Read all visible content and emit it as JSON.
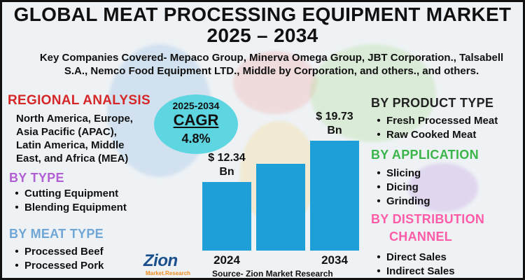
{
  "title": {
    "line1": "GLOBAL MEAT PROCESSING EQUIPMENT MARKET",
    "line2": "2025 – 2034"
  },
  "companies": "Key Companies Covered- Mepaco Group, Minerva Omega Group, JBT Corporation., Talsabell S.A., Nemco Food Equipment LTD., Middle by Corporation, and others., and others.",
  "regional": {
    "heading": "REGIONAL ANALYSIS",
    "text_lines": [
      "North America, Europe,",
      "Asia Pacific (APAC),",
      "Latin America, Middle",
      "East, and Africa (MEA)"
    ]
  },
  "by_type": {
    "heading": "BY TYPE",
    "items": [
      "Cutting Equipment",
      "Blending Equipment"
    ]
  },
  "by_meat_type": {
    "heading": "BY MEAT TYPE",
    "items": [
      "Processed Beef",
      "Processed Pork"
    ]
  },
  "cagr": {
    "years": "2025-2034",
    "label": "CAGR",
    "value": "4.8%"
  },
  "by_product_type": {
    "heading": "BY PRODUCT TYPE",
    "items": [
      "Fresh Processed Meat",
      "Raw Cooked Meat"
    ]
  },
  "by_application": {
    "heading": "BY APPLICATION",
    "items": [
      "Slicing",
      "Dicing",
      "Grinding"
    ]
  },
  "by_distribution": {
    "heading_line1": "BY DISTRIBUTION",
    "heading_line2": "CHANNEL",
    "items": [
      "Direct Sales",
      "Indirect Sales"
    ]
  },
  "chart_data": {
    "type": "bar",
    "categories": [
      "2024",
      "",
      "2034"
    ],
    "values": [
      12.34,
      15.6,
      19.73
    ],
    "data_labels": [
      "$ 12.34",
      "",
      "$ 19.73"
    ],
    "data_label_unit": "Bn",
    "title": "",
    "xlabel": "",
    "ylabel": "",
    "ylim": [
      0,
      22
    ]
  },
  "source": "Source- Zion Market Research",
  "logo": {
    "name": "Zion",
    "sub": "Market.Research"
  },
  "colors": {
    "regional": "#d62728",
    "by_type": "#b15fd3",
    "by_meat_type": "#6fa6d6",
    "by_product_type": "#222222",
    "by_application": "#3ab54a",
    "by_distribution": "#ff5ca8",
    "bar": "#1e9fd8",
    "cagr_circle": "#5ed6e2"
  }
}
